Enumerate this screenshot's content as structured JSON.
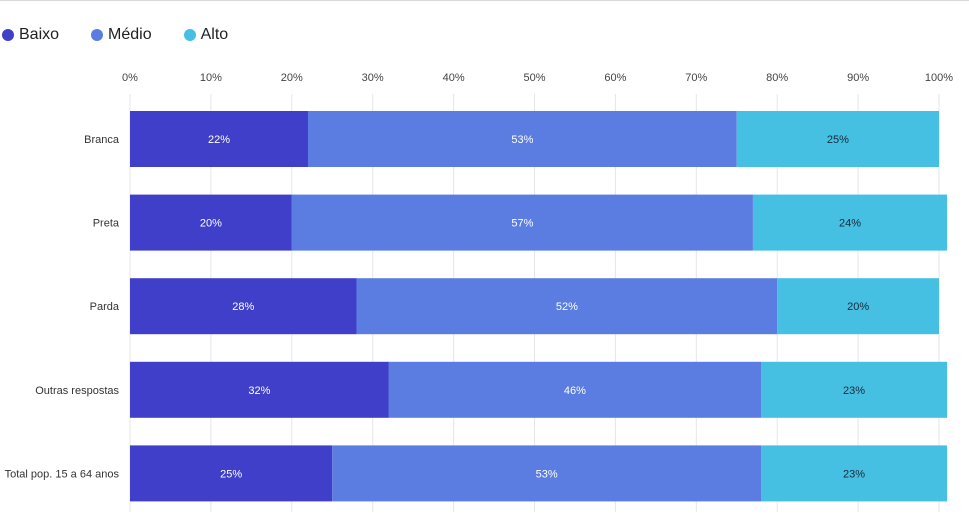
{
  "legend": [
    {
      "label": "Baixo",
      "color": "#3f3fc9"
    },
    {
      "label": "Médio",
      "color": "#5b7ce0"
    },
    {
      "label": "Alto",
      "color": "#45bfe2"
    }
  ],
  "chart_data": {
    "type": "bar",
    "orientation": "horizontal",
    "stacked": true,
    "xlim": [
      0,
      100
    ],
    "x_ticks": [
      "0%",
      "10%",
      "20%",
      "30%",
      "40%",
      "50%",
      "60%",
      "70%",
      "80%",
      "90%",
      "100%"
    ],
    "categories": [
      "Branca",
      "Preta",
      "Parda",
      "Outras respostas",
      "Total pop. 15 a 64 anos"
    ],
    "series": [
      {
        "name": "Baixo",
        "color": "#3f3fc9",
        "label_color": "#ffffff",
        "values": [
          22,
          20,
          28,
          32,
          25
        ],
        "labels": [
          "22%",
          "20%",
          "28%",
          "32%",
          "25%"
        ]
      },
      {
        "name": "Médio",
        "color": "#5b7ce0",
        "label_color": "#ffffff",
        "values": [
          53,
          57,
          52,
          46,
          53
        ],
        "labels": [
          "53%",
          "57%",
          "52%",
          "46%",
          "53%"
        ]
      },
      {
        "name": "Alto",
        "color": "#45bfe2",
        "label_color": "#1a2a3a",
        "values": [
          25,
          24,
          20,
          23,
          23
        ],
        "labels": [
          "25%",
          "24%",
          "20%",
          "23%",
          "23%"
        ]
      }
    ],
    "grid": true,
    "legend_position": "top-left"
  }
}
